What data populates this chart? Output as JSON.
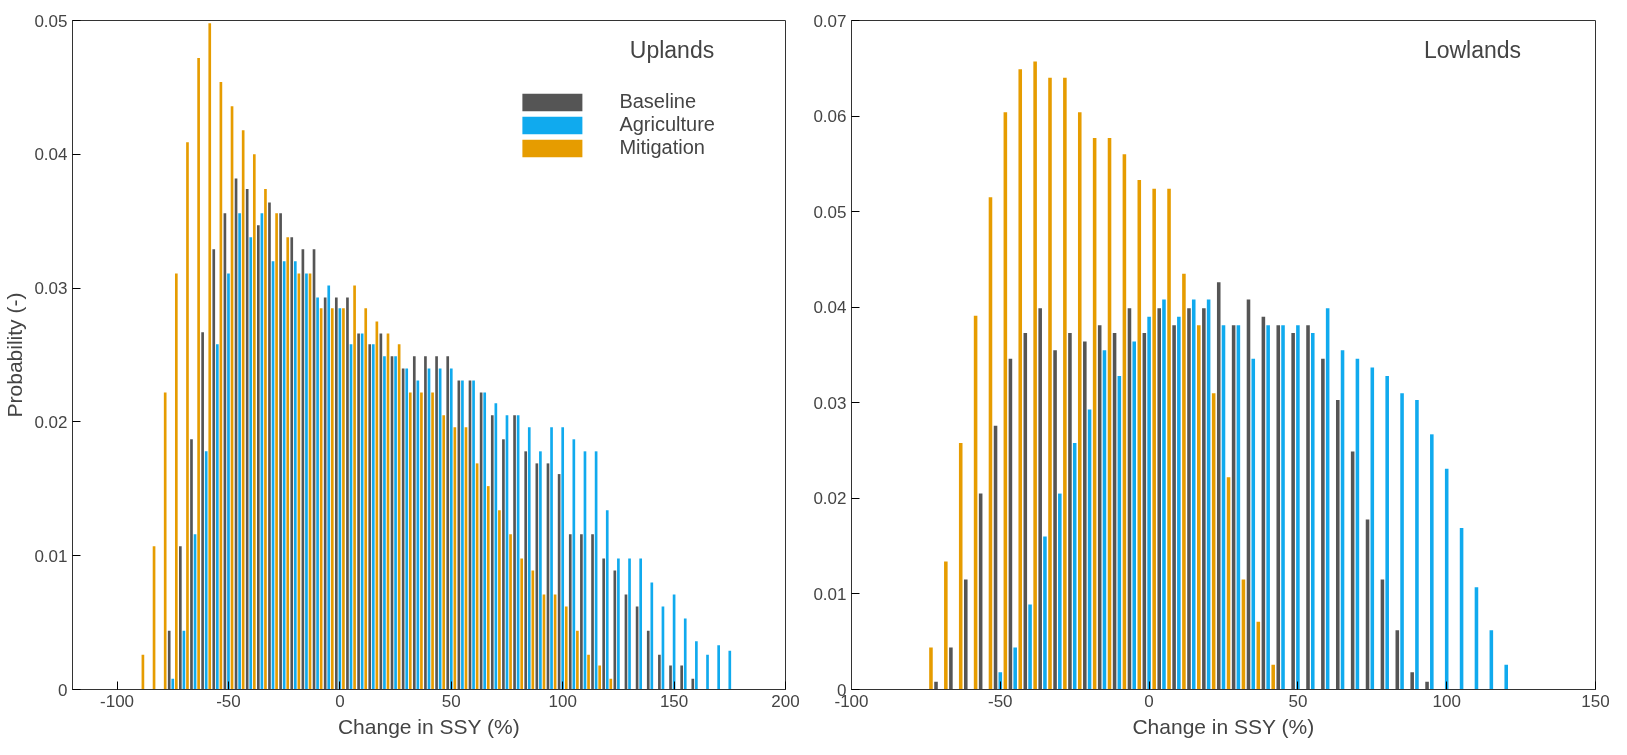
{
  "chart_data": [
    {
      "type": "bar",
      "title": "Uplands",
      "xlabel": "Change in SSY (%)",
      "ylabel": "Probability (-)",
      "xlim": [
        -120,
        200
      ],
      "ylim": [
        0,
        0.05
      ],
      "xticks": [
        -100,
        -50,
        0,
        50,
        100,
        150,
        200
      ],
      "yticks": [
        0,
        0.01,
        0.02,
        0.03,
        0.04,
        0.05
      ],
      "legend": "top right",
      "series": [
        {
          "name": "Baseline",
          "color": "#555555",
          "x": [
            -76.6,
            -71.6,
            -66.6,
            -61.6,
            -56.6,
            -51.6,
            -46.6,
            -41.6,
            -36.6,
            -31.6,
            -26.6,
            -21.6,
            -16.6,
            -11.6,
            -6.6,
            -1.6,
            3.4,
            8.4,
            13.4,
            18.4,
            23.4,
            28.4,
            33.4,
            38.4,
            43.4,
            48.4,
            53.4,
            58.4,
            63.4,
            68.4,
            73.4,
            78.4,
            83.4,
            88.4,
            93.4,
            98.4,
            103.4,
            108.4,
            113.4,
            118.4,
            123.4,
            128.4,
            133.4,
            138.4,
            143.4,
            148.4,
            153.4,
            158.4
          ],
          "values": [
            0.0044,
            0.0107,
            0.0187,
            0.0267,
            0.0329,
            0.0356,
            0.0382,
            0.0374,
            0.0347,
            0.0364,
            0.0356,
            0.0338,
            0.0329,
            0.0329,
            0.0293,
            0.0293,
            0.0293,
            0.0266,
            0.0258,
            0.0266,
            0.0249,
            0.024,
            0.0249,
            0.0249,
            0.0249,
            0.0249,
            0.0231,
            0.0231,
            0.0222,
            0.0205,
            0.0187,
            0.0205,
            0.0178,
            0.0169,
            0.0169,
            0.0161,
            0.0116,
            0.0116,
            0.0116,
            0.0098,
            0.0089,
            0.0071,
            0.0062,
            0.0044,
            0.0026,
            0.0018,
            0.0018,
            0.0008
          ]
        },
        {
          "name": "Agriculture",
          "color": "#10aaee",
          "x": [
            -75,
            -70,
            -65,
            -60,
            -55,
            -50,
            -45,
            -40,
            -35,
            -30,
            -25,
            -20,
            -15,
            -10,
            -5,
            0,
            5,
            10,
            15,
            20,
            25,
            30,
            35,
            40,
            45,
            50,
            55,
            60,
            65,
            70,
            75,
            80,
            85,
            90,
            95,
            100,
            105,
            110,
            115,
            120,
            125,
            130,
            135,
            140,
            145,
            150,
            155,
            160,
            165,
            170,
            175
          ],
          "values": [
            0.0008,
            0.0044,
            0.0116,
            0.0178,
            0.0258,
            0.0311,
            0.0356,
            0.0338,
            0.0356,
            0.032,
            0.032,
            0.032,
            0.0311,
            0.0293,
            0.0302,
            0.0285,
            0.0258,
            0.0266,
            0.0258,
            0.0249,
            0.0249,
            0.024,
            0.0231,
            0.024,
            0.024,
            0.024,
            0.0231,
            0.0231,
            0.0222,
            0.0214,
            0.0205,
            0.0205,
            0.0196,
            0.0178,
            0.0196,
            0.0196,
            0.0187,
            0.0178,
            0.0178,
            0.0134,
            0.0098,
            0.0098,
            0.0098,
            0.008,
            0.0062,
            0.0071,
            0.0053,
            0.0036,
            0.0026,
            0.0033,
            0.0029
          ]
        },
        {
          "name": "Mitigation",
          "color": "#e69c00",
          "x": [
            -88.4,
            -83.4,
            -78.4,
            -73.4,
            -68.4,
            -63.4,
            -58.4,
            -53.4,
            -48.4,
            -43.4,
            -38.4,
            -33.4,
            -28.4,
            -23.4,
            -18.4,
            -13.4,
            -8.4,
            -3.4,
            1.6,
            6.6,
            11.6,
            16.6,
            21.6,
            26.6,
            31.6,
            36.6,
            41.6,
            46.6,
            51.6,
            56.6,
            61.6,
            66.6,
            71.6,
            76.6,
            81.6,
            86.6,
            91.6,
            96.6,
            101.6,
            106.6,
            111.6,
            116.6,
            121.6
          ],
          "values": [
            0.0026,
            0.0107,
            0.0222,
            0.0311,
            0.0409,
            0.0472,
            0.0498,
            0.0454,
            0.0436,
            0.0418,
            0.04,
            0.0374,
            0.0356,
            0.0338,
            0.0311,
            0.0311,
            0.0285,
            0.0285,
            0.0285,
            0.0302,
            0.0285,
            0.0275,
            0.0266,
            0.0258,
            0.0222,
            0.0222,
            0.0222,
            0.0205,
            0.0196,
            0.0196,
            0.0169,
            0.0152,
            0.0134,
            0.0116,
            0.0098,
            0.0089,
            0.0071,
            0.0071,
            0.0062,
            0.0044,
            0.0026,
            0.0018,
            0.0008
          ]
        }
      ]
    },
    {
      "type": "bar",
      "title": "Lowlands",
      "xlabel": "Change in SSY (%)",
      "xlim": [
        -100,
        150
      ],
      "ylim": [
        0,
        0.07
      ],
      "xticks": [
        -100,
        -50,
        0,
        50,
        100,
        150
      ],
      "yticks": [
        0,
        0.01,
        0.02,
        0.03,
        0.04,
        0.05,
        0.06,
        0.07
      ],
      "series": [
        {
          "color": "#e69c00",
          "x": [
            -73.3,
            -68.3,
            -63.3,
            -58.3,
            -53.3,
            -48.3,
            -43.3,
            -38.3,
            -33.3,
            -28.3,
            -23.3,
            -18.3,
            -13.3,
            -8.3,
            -3.3,
            1.7,
            6.7,
            11.7,
            16.7,
            21.7,
            26.7,
            31.7,
            36.7,
            41.7
          ],
          "values": [
            0.0044,
            0.0134,
            0.0258,
            0.0391,
            0.0515,
            0.0604,
            0.0649,
            0.0657,
            0.064,
            0.064,
            0.0604,
            0.0577,
            0.0577,
            0.056,
            0.0533,
            0.0524,
            0.0524,
            0.0435,
            0.0381,
            0.031,
            0.0222,
            0.0115,
            0.0071,
            0.0026
          ]
        },
        {
          "color": "#555555",
          "x": [
            -71.6,
            -66.6,
            -61.6,
            -56.6,
            -51.6,
            -46.6,
            -41.6,
            -36.6,
            -31.6,
            -26.6,
            -21.6,
            -16.6,
            -11.6,
            -6.6,
            -1.6,
            3.4,
            8.4,
            13.4,
            18.4,
            23.4,
            28.4,
            33.4,
            38.4,
            43.4,
            48.4,
            53.4,
            58.4,
            63.4,
            68.4,
            73.4,
            78.4,
            83.4,
            88.4,
            93.4
          ],
          "values": [
            0.0008,
            0.0044,
            0.0115,
            0.0205,
            0.0276,
            0.0346,
            0.0373,
            0.0399,
            0.0355,
            0.0373,
            0.0364,
            0.0381,
            0.0373,
            0.0399,
            0.0373,
            0.0399,
            0.0381,
            0.0399,
            0.0399,
            0.0426,
            0.0381,
            0.0408,
            0.039,
            0.0381,
            0.0373,
            0.0381,
            0.0346,
            0.0303,
            0.0249,
            0.0178,
            0.0115,
            0.0062,
            0.0018,
            0.0008
          ]
        },
        {
          "color": "#10aaee",
          "x": [
            -50,
            -45,
            -40,
            -35,
            -30,
            -25,
            -20,
            -15,
            -10,
            -5,
            0,
            5,
            10,
            15,
            20,
            25,
            30,
            35,
            40,
            45,
            50,
            55,
            60,
            65,
            70,
            75,
            80,
            85,
            90,
            95,
            100,
            105,
            110,
            115,
            120
          ],
          "values": [
            0.0018,
            0.0044,
            0.0089,
            0.016,
            0.0205,
            0.0258,
            0.0293,
            0.0355,
            0.0328,
            0.0364,
            0.039,
            0.0408,
            0.039,
            0.0408,
            0.0408,
            0.0381,
            0.0381,
            0.0346,
            0.0381,
            0.0381,
            0.0381,
            0.0373,
            0.0399,
            0.0355,
            0.0346,
            0.0337,
            0.0328,
            0.031,
            0.0303,
            0.0267,
            0.0231,
            0.0169,
            0.0107,
            0.0062,
            0.0026
          ]
        }
      ]
    }
  ]
}
